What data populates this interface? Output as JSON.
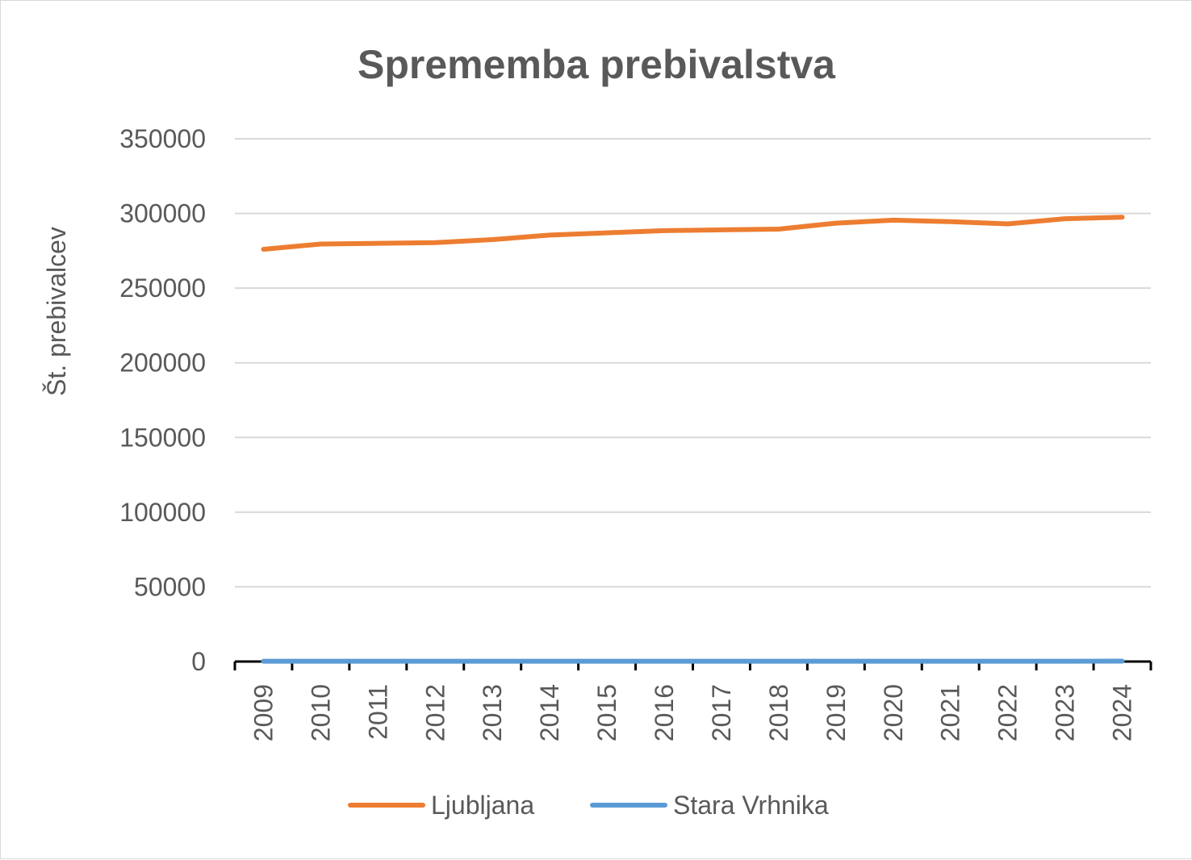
{
  "chart_data": {
    "type": "line",
    "title": "Sprememba prebivalstva",
    "xlabel": "",
    "ylabel": "Št. prebivalcev",
    "ylim": [
      0,
      350000
    ],
    "y_ticks": [
      "0",
      "50000",
      "100000",
      "150000",
      "200000",
      "250000",
      "300000",
      "350000"
    ],
    "y_tick_values": [
      0,
      50000,
      100000,
      150000,
      200000,
      250000,
      300000,
      350000
    ],
    "categories": [
      "2009",
      "2010",
      "2011",
      "2012",
      "2013",
      "2014",
      "2015",
      "2016",
      "2017",
      "2018",
      "2019",
      "2020",
      "2021",
      "2022",
      "2023",
      "2024"
    ],
    "grid": true,
    "legend_position": "bottom",
    "series": [
      {
        "name": "Ljubljana",
        "color": "#ed7d31",
        "values": [
          276000,
          279500,
          280000,
          280500,
          282500,
          285500,
          287000,
          288500,
          289000,
          289500,
          293500,
          295500,
          294500,
          293000,
          296500,
          297500
        ]
      },
      {
        "name": "Stara Vrhnika",
        "color": "#5b9bd5",
        "values": [
          200,
          210,
          210,
          215,
          215,
          220,
          220,
          225,
          225,
          230,
          230,
          235,
          235,
          240,
          240,
          245
        ]
      }
    ]
  }
}
